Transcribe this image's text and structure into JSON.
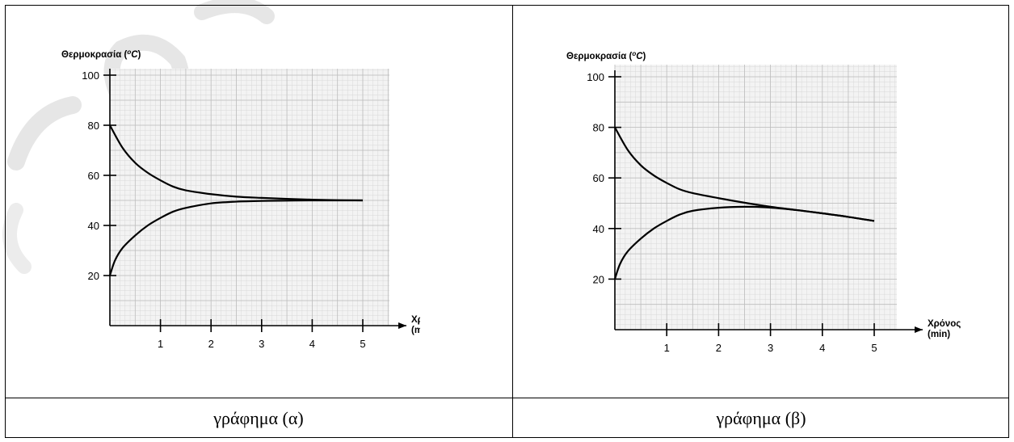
{
  "captions": {
    "a": "γράφημα (α)",
    "b": "γράφημα (β)"
  },
  "chart_data": [
    {
      "type": "line",
      "title": "",
      "ylabel": "Θερμοκρασία (°C)",
      "ylabel_main": "Θερμοκρασία (",
      "ylabel_unit_sup": "o",
      "ylabel_unit": "C",
      "ylabel_close": ")",
      "xlabel_line1": "Χρόνος",
      "xlabel_line2": "(min)",
      "xlim": [
        0,
        5
      ],
      "ylim": [
        0,
        100
      ],
      "xticks": [
        1,
        2,
        3,
        4,
        5
      ],
      "yticks": [
        20,
        40,
        60,
        80,
        100
      ],
      "grid": true,
      "series": [
        {
          "x": [
            0,
            0.25,
            0.5,
            0.75,
            1.0,
            1.25,
            1.5,
            2.0,
            2.5,
            3.0,
            3.5,
            4.0,
            4.5,
            5.0
          ],
          "y": [
            80,
            71,
            65,
            61,
            58,
            55.5,
            54,
            52.5,
            51.5,
            51,
            50.6,
            50.3,
            50.1,
            50
          ]
        },
        {
          "x": [
            0,
            0.1,
            0.25,
            0.5,
            0.75,
            1.0,
            1.25,
            1.5,
            2.0,
            2.5,
            3.0,
            3.5,
            4.0,
            4.5,
            5.0
          ],
          "y": [
            20,
            26,
            31,
            36,
            40,
            43,
            45.5,
            47,
            48.8,
            49.5,
            49.8,
            49.9,
            50,
            50,
            50
          ]
        }
      ]
    },
    {
      "type": "line",
      "title": "",
      "ylabel": "Θερμοκρασία (°C)",
      "ylabel_main": "Θερμοκρασία (",
      "ylabel_unit_sup": "o",
      "ylabel_unit": "C",
      "ylabel_close": ")",
      "xlabel_line1": "Χρόνος",
      "xlabel_line2": "(min)",
      "xlim": [
        0,
        5
      ],
      "ylim": [
        0,
        100
      ],
      "xticks": [
        1,
        2,
        3,
        4,
        5
      ],
      "yticks": [
        20,
        40,
        60,
        80,
        100
      ],
      "grid": true,
      "series": [
        {
          "x": [
            0,
            0.25,
            0.5,
            0.75,
            1.0,
            1.25,
            1.5,
            2.0,
            2.5,
            3.0,
            3.5,
            4.0,
            4.5,
            5.0
          ],
          "y": [
            80,
            71,
            65,
            61,
            58,
            55.5,
            54,
            52,
            50.2,
            48.6,
            47.3,
            46,
            44.6,
            43
          ]
        },
        {
          "x": [
            0,
            0.1,
            0.25,
            0.5,
            0.75,
            1.0,
            1.25,
            1.5,
            2.0,
            2.5,
            2.9,
            3.5,
            4.0,
            4.5,
            5.0
          ],
          "y": [
            20,
            26,
            31,
            36,
            40,
            43,
            45.5,
            47,
            48.2,
            48.6,
            48.4,
            47.3,
            46,
            44.6,
            43
          ]
        }
      ]
    }
  ]
}
